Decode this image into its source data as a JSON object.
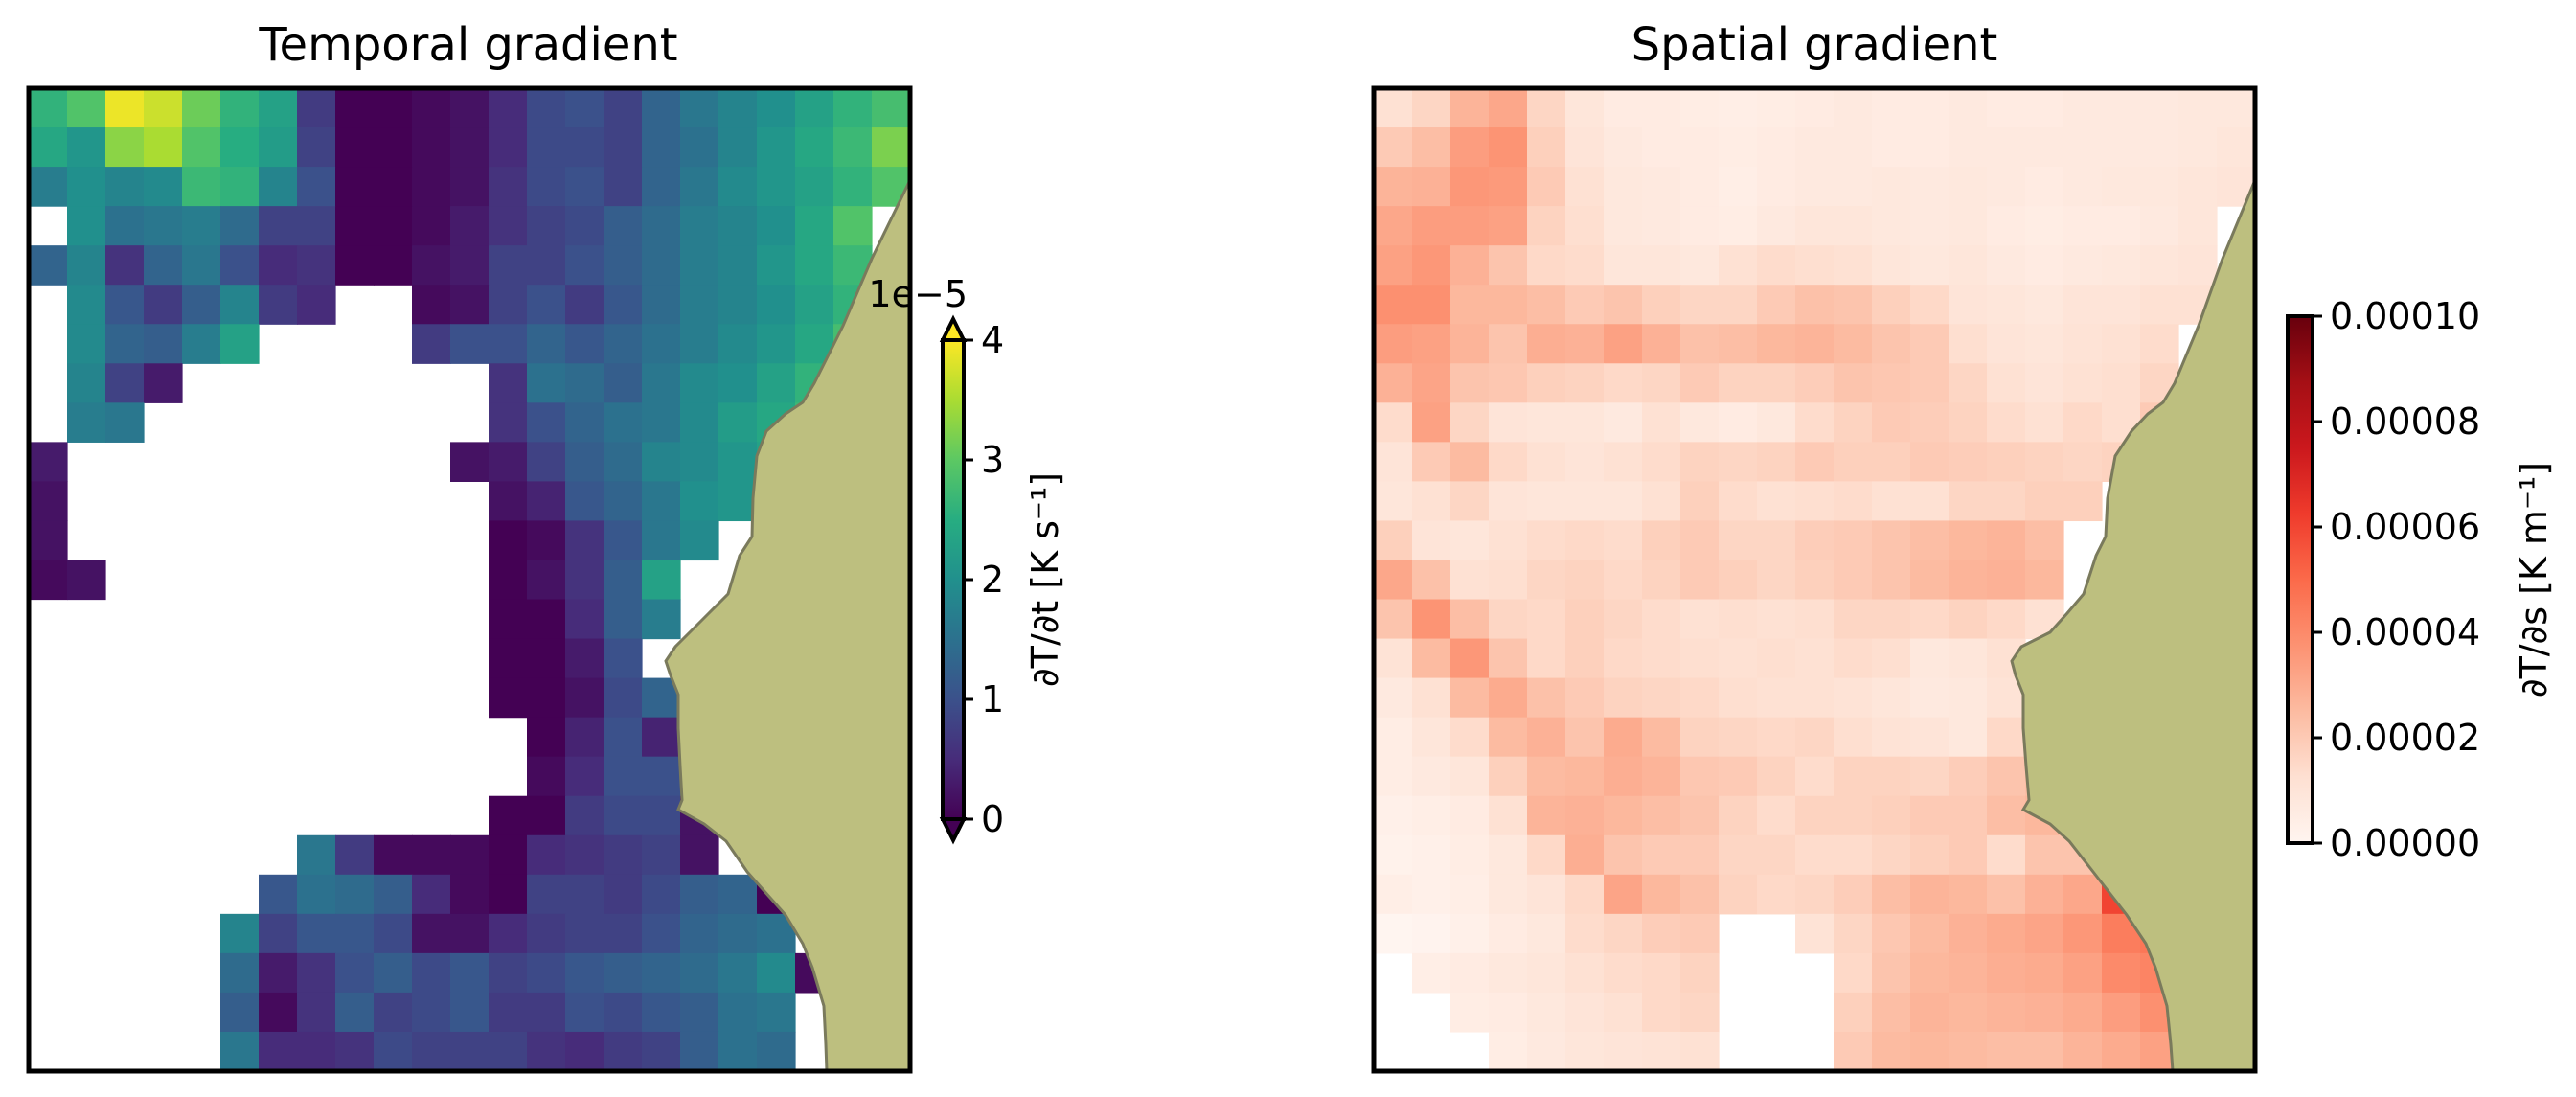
{
  "chart_data": [
    {
      "type": "heatmap",
      "title": "Temporal gradient",
      "colormap": "viridis",
      "vmin": 0,
      "vmax": 4,
      "land_color": "#bdbf7f",
      "colorbar": {
        "label": "∂T/∂t [K s⁻¹]",
        "ticks": [
          "0",
          "1",
          "2",
          "3",
          "4"
        ],
        "offset_text": "1e−5",
        "extend": "both"
      },
      "grid": [
        "2.6 2.9 3.9 3.7 3.1 2.6 2.3 0.7 0.0 0.0 0.1 0.2 0.5 0.9 1.0 0.8 1.3 1.6 1.8 2.0 2.3 2.6 2.8",
        "2.4 2.1 3.3 3.5 2.9 2.5 2.2 0.8 0.0 0.0 0.1 0.2 0.5 0.9 0.9 0.8 1.3 1.5 1.8 2.1 2.4 2.7 3.2",
        "1.7 2.0 1.8 1.9 2.7 2.6 1.8 1.0 0.0 0.0 0.1 0.2 0.6 0.9 1.0 0.8 1.3 1.6 1.9 2.1 2.3 2.6 2.9",
        "- 2.0 1.5 1.6 1.7 1.4 0.8 0.8 0.0 0.0 0.1 0.3 0.6 0.8 0.9 1.2 1.4 1.7 1.8 2.0 2.4 2.9 -",
        "1.3 1.8 0.6 1.3 1.6 1.0 0.5 0.6 0.0 0.0 0.2 0.3 0.8 0.8 1.0 1.2 1.4 1.7 1.8 2.1 2.4 2.7 -",
        "- 1.9 1.1 0.7 1.2 1.8 0.7 0.5 - - 0.1 0.2 0.8 1.0 0.7 1.1 1.4 1.7 1.8 2.0 2.3 2.6 -",
        "- 1.9 1.3 1.2 1.7 2.3 - - - - 0.7 1.0 1.0 1.3 1.1 1.3 1.5 1.7 1.9 2.1 2.4 2.8 -",
        "- 1.8 0.8 0.3 - - - - - - - - 0.6 1.5 1.4 1.2 1.6 1.9 2.0 2.3 2.6 - -",
        "- 1.7 1.6 - - - - - - - - - 0.6 1.0 1.3 1.5 1.6 1.9 2.2 2.4 2.7 - -",
        "0.3 - - - - - - - - - - 0.2 0.3 0.8 1.2 1.4 1.8 1.9 2.1 2.3 - - -",
        "0.2 - - - - - - - - - - - 0.2 0.4 1.1 1.3 1.6 2.0 2.1 - - - -",
        "0.2 - - - - - - - - - - - 0.0 0.1 0.6 1.1 1.6 1.9 - - - - -",
        "0.1 0.2 - - - - - - - - - - 0.0 0.2 0.6 1.2 2.3 - - - - - -",
        "- - - - - - - - - - - - 0.0 0.0 0.5 1.2 1.7 - - - - - -",
        "- - - - - - - - - - - - 0.0 0.0 0.3 1.0 - - - - - - -",
        "- - - - - - - - - - - - 0.0 0.0 0.2 0.9 1.3 - - - - - -",
        "- - - - - - - - - - - - - 0.0 0.4 1.0 0.4 - - - - - -",
        "- - - - - - - - - - - - - 0.1 0.5 1.0 1.0 - - - - - -",
        "- - - - - - - - - - - - 0.0 0.0 0.7 0.9 0.9 0.2 - - - - -",
        "- - - - - - - 1.6 0.7 0.1 0.1 0.1 0.0 0.5 0.6 0.7 0.8 0.2 - - - - -",
        "- - - - - - 1.1 1.5 1.4 1.2 0.5 0.1 0.0 0.8 0.8 0.7 0.9 1.2 1.3 0.0 - - -",
        "- - - - - 1.8 0.8 1.1 1.1 0.9 0.2 0.2 0.5 0.7 0.8 0.8 1.0 1.3 1.4 1.5 - - -",
        "- - - - - 1.4 0.3 0.6 1.0 1.2 0.9 1.1 0.8 0.9 1.1 1.2 1.3 1.4 1.6 1.9 0.1 - -",
        "- - - - - 1.2 0.1 0.6 1.2 0.8 0.9 1.1 0.7 0.7 1.0 0.9 1.1 1.2 1.5 1.6 - - -",
        "- - - - - 1.6 0.5 0.5 0.6 0.9 0.8 0.8 0.8 0.6 0.5 0.7 0.8 1.2 1.5 1.4 - - -"
      ]
    },
    {
      "type": "heatmap",
      "title": "Spatial gradient",
      "colormap": "Reds",
      "vmin": 0,
      "vmax": 0.0001,
      "land_color": "#bdbf7f",
      "colorbar": {
        "label": "∂T/∂s [K m⁻¹]",
        "ticks": [
          "0.00000",
          "0.00002",
          "0.00004",
          "0.00006",
          "0.00008",
          "0.00010"
        ],
        "offset_text": "",
        "extend": "neither"
      },
      "grid": [
        "0.12 0.16 0.27 0.31 0.16 0.09 0.06 0.06 0.05 0.04 0.05 0.06 0.07 0.06 0.06 0.07 0.06 0.06 0.07 0.07 0.07 0.08 0.08",
        "0.20 0.24 0.34 0.37 0.18 0.10 0.07 0.06 0.06 0.05 0.06 0.07 0.07 0.06 0.06 0.07 0.07 0.07 0.07 0.07 0.07 0.08 0.09",
        "0.27 0.28 0.36 0.35 0.20 0.12 0.08 0.07 0.06 0.04 0.06 0.07 0.07 0.08 0.07 0.08 0.07 0.06 0.07 0.08 0.08 0.09 0.10",
        "0.31 0.34 0.34 0.33 0.17 0.13 0.08 0.07 0.06 0.05 0.07 0.09 0.09 0.08 0.07 0.08 0.06 0.05 0.06 0.06 0.07 0.09 -",
        "0.33 0.36 0.28 0.22 0.15 0.14 0.09 0.09 0.08 0.12 0.14 0.13 0.12 0.09 0.08 0.09 0.07 0.06 0.07 0.08 0.09 0.10 -",
        "0.38 0.38 0.26 0.26 0.24 0.20 0.22 0.18 0.16 0.16 0.20 0.23 0.22 0.18 0.15 0.10 0.09 0.08 0.10 0.10 0.12 0.12 -",
        "0.34 0.33 0.27 0.22 0.29 0.28 0.33 0.28 0.23 0.24 0.26 0.27 0.25 0.22 0.20 0.13 0.10 0.09 0.11 0.12 0.14 - -",
        "0.28 0.32 0.22 0.21 0.18 0.17 0.15 0.16 0.20 0.17 0.17 0.19 0.22 0.21 0.20 0.16 0.12 0.10 0.12 0.13 0.16 - -",
        "0.14 0.33 0.16 0.10 0.09 0.09 0.07 0.12 0.08 0.06 0.08 0.14 0.17 0.20 0.19 0.17 0.14 0.12 0.15 0.13 0.20 - -",
        "0.10 0.20 0.25 0.15 0.12 0.10 0.12 0.14 0.17 0.16 0.17 0.20 0.18 0.18 0.20 0.19 0.18 0.17 0.16 0.17 - - -",
        "0.09 0.12 0.16 0.10 0.09 0.09 0.09 0.12 0.18 0.14 0.12 0.13 0.14 0.12 0.12 0.16 0.16 0.18 0.18 - - - -",
        "0.18 0.10 0.09 0.12 0.14 0.15 0.14 0.18 0.20 0.16 0.16 0.19 0.20 0.22 0.24 0.26 0.27 0.24 - - - - -",
        "0.31 0.23 0.12 0.13 0.16 0.17 0.15 0.17 0.20 0.18 0.16 0.18 0.20 0.22 0.25 0.27 0.28 0.26 - - - - -",
        "0.22 0.37 0.24 0.16 0.15 0.18 0.16 0.14 0.12 0.13 0.12 0.13 0.16 0.16 0.15 0.17 0.15 0.12 - - - - -",
        "0.11 0.25 0.36 0.22 0.15 0.18 0.15 0.14 0.13 0.12 0.13 0.12 0.14 0.13 0.08 0.09 0.12 - - - - - -",
        "0.07 0.12 0.25 0.30 0.23 0.20 0.17 0.16 0.15 0.13 0.12 0.12 0.11 0.09 0.07 0.08 0.11 0.24 - - - - -",
        "0.05 0.09 0.14 0.25 0.28 0.22 0.30 0.25 0.17 0.16 0.15 0.16 0.13 0.11 0.10 0.08 0.15 0.24 - - - - -",
        "0.05 0.07 0.09 0.18 0.25 0.26 0.29 0.27 0.21 0.20 0.17 0.14 0.17 0.17 0.16 0.19 0.22 0.24 - - - - -",
        "0.03 0.04 0.06 0.12 0.27 0.28 0.26 0.24 0.22 0.17 0.14 0.17 0.17 0.18 0.20 0.20 0.24 0.26 0.18 - - - -",
        "0.02 0.03 0.05 0.08 0.15 0.29 0.22 0.20 0.20 0.16 0.16 0.14 0.14 0.16 0.18 0.20 0.14 0.22 0.22 0.62 0.82 - -",
        "0.04 0.03 0.04 0.08 0.10 0.15 0.32 0.26 0.23 0.17 0.15 0.16 0.19 0.24 0.27 0.26 0.23 0.28 0.31 0.60 0.68 - -",
        "0.00 0.01 0.03 0.06 0.08 0.14 0.16 0.19 0.20 - - 0.11 0.16 0.21 0.25 0.28 0.30 0.32 0.36 0.44 0.46 0.36 -",
        "- 0.04 0.06 0.08 0.09 0.12 0.14 0.15 0.17 - - - 0.15 0.22 0.26 0.27 0.29 0.30 0.33 0.40 0.42 0.46 -",
        "- - 0.05 0.06 0.08 0.10 0.12 0.15 0.16 - - - 0.18 0.24 0.27 0.26 0.27 0.28 0.30 0.34 0.38 - -",
        "- - - 0.05 0.07 0.09 0.10 0.11 0.12 - - - 0.20 0.25 0.26 0.25 0.24 0.24 0.27 0.30 0.33 - -"
      ]
    }
  ]
}
